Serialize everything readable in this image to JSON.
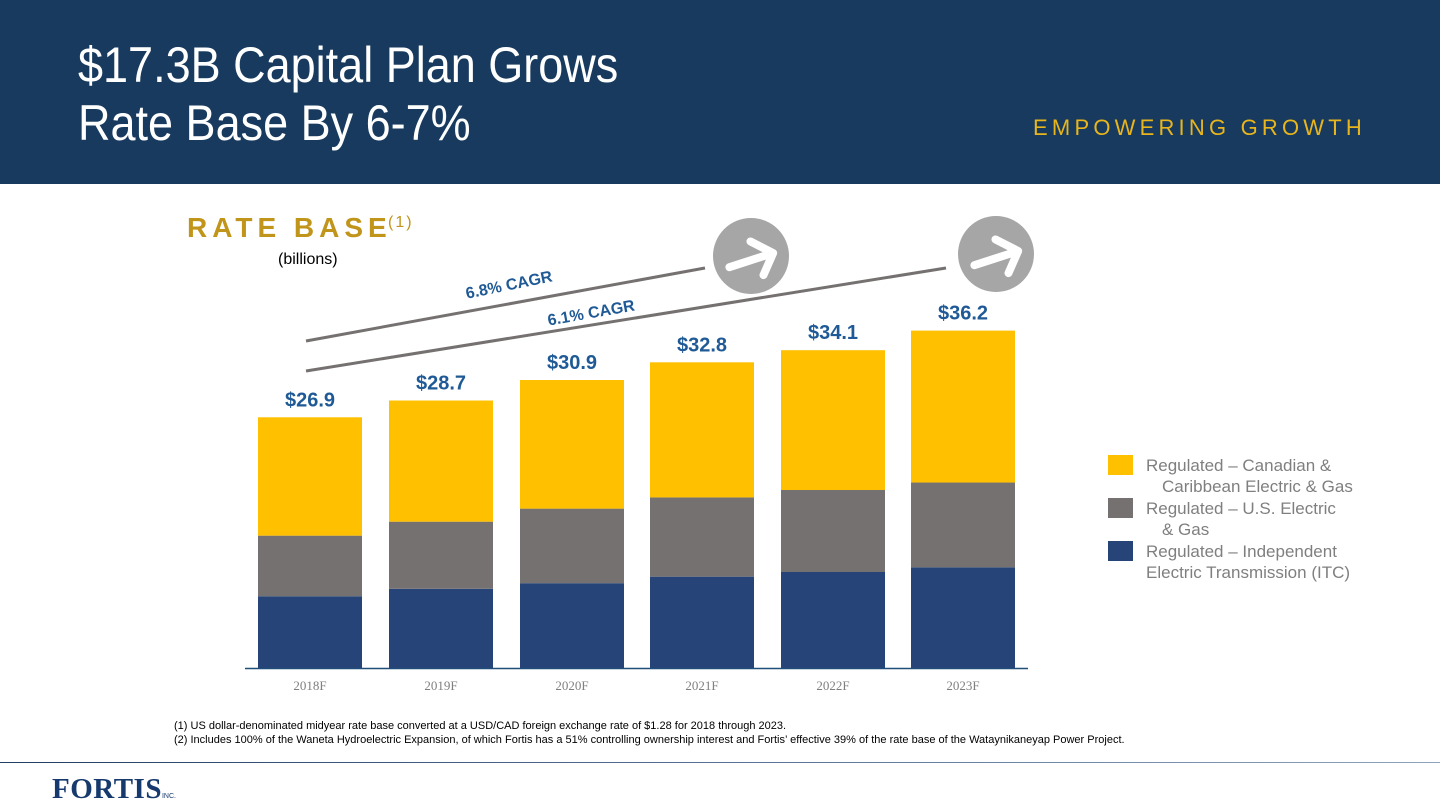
{
  "header": {
    "title_line1": "$17.3B Capital Plan Grows",
    "title_line2": "Rate Base By 6-7%",
    "tagline": "EMPOWERING GROWTH"
  },
  "section": {
    "title": "RATE BASE",
    "footnote_ref": "(1)",
    "units": "(billions)"
  },
  "colors": {
    "header_bg": "#173a5e",
    "tagline": "#e8b51c",
    "canadian": "#ffc000",
    "us": "#767171",
    "itc": "#264478",
    "total_label": "#1f5a96",
    "cagr_line": "#767171",
    "arrow_circle": "#a6a6a6"
  },
  "chart_data": {
    "type": "bar",
    "stacked": true,
    "title": "RATE BASE (1)",
    "ylabel": "(billions)",
    "xlabel": "",
    "ylim": [
      0,
      40
    ],
    "grid": false,
    "categories": [
      "2018F",
      "2019F",
      "2020F",
      "2021F",
      "2022F",
      "2023F"
    ],
    "series": [
      {
        "name": "Regulated – Independent Electric Transmission (ITC)",
        "color": "#264478",
        "values": [
          7.7,
          8.5,
          9.1,
          9.8,
          10.3,
          10.8
        ]
      },
      {
        "name": "Regulated – U.S. Electric & Gas",
        "color": "#767171",
        "values": [
          6.5,
          7.2,
          8.0,
          8.5,
          8.8,
          9.1
        ]
      },
      {
        "name": "Regulated – Canadian & Caribbean Electric & Gas",
        "color": "#ffc000",
        "values": [
          12.7,
          13.0,
          13.8,
          14.5,
          15.0,
          16.3
        ]
      }
    ],
    "totals": [
      26.9,
      28.7,
      30.9,
      32.8,
      34.1,
      36.2
    ],
    "total_labels": [
      "$26.9",
      "$28.7",
      "$30.9",
      "$32.8",
      "$34.1",
      "$36.2"
    ],
    "annotations": [
      {
        "text": "6.8% CAGR",
        "from": "2018F",
        "to": "2021F"
      },
      {
        "text": "6.1% CAGR",
        "from": "2018F",
        "to": "2023F"
      }
    ],
    "legend_position": "right"
  },
  "legend": [
    {
      "line1": "Regulated – Canadian &",
      "line2": "Caribbean Electric & Gas",
      "indent": true,
      "color": "#ffc000"
    },
    {
      "line1": "Regulated – U.S. Electric",
      "line2": "& Gas",
      "indent": true,
      "color": "#767171"
    },
    {
      "line1": "Regulated – Independent",
      "line2": "Electric Transmission (ITC)",
      "indent": false,
      "color": "#264478"
    }
  ],
  "footnotes": [
    "(1)  US dollar-denominated midyear rate base converted at a USD/CAD foreign exchange rate of $1.28 for 2018 through 2023.",
    "(2)  Includes 100% of the Waneta Hydroelectric Expansion, of which Fortis has a 51% controlling ownership interest and Fortis’ effective 39% of the rate base of the Wataynikaneyap Power Project."
  ],
  "logo": {
    "name": "FORTIS",
    "suffix": "INC."
  }
}
